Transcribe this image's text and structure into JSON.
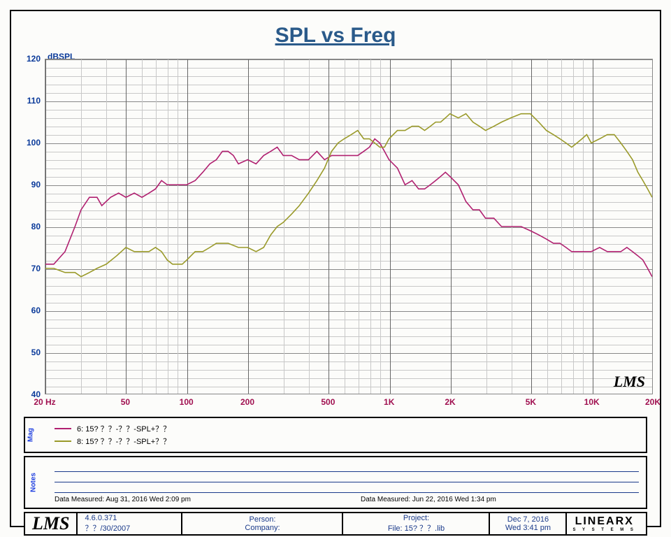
{
  "chart": {
    "type": "line",
    "title": "SPL vs Freq",
    "title_color": "#2a5a8a",
    "title_fontsize": 30,
    "ylabel": "dBSPL",
    "ylabel_color": "#0a3a9a",
    "background_color": "#fcfcfa",
    "grid_color_minor": "#c8c8c8",
    "grid_color_major": "#888888",
    "xtick_color": "#a01050",
    "ytick_color": "#0a3a9a",
    "line_width": 1.6,
    "xscale": "log",
    "xlim": [
      20,
      20000
    ],
    "ylim": [
      40,
      120
    ],
    "ytick_step_major": 10,
    "ytick_step_minor": 2,
    "xticks_labeled": [
      {
        "v": 20,
        "label": "20 Hz"
      },
      {
        "v": 50,
        "label": "50"
      },
      {
        "v": 100,
        "label": "100"
      },
      {
        "v": 200,
        "label": "200"
      },
      {
        "v": 500,
        "label": "500"
      },
      {
        "v": 1000,
        "label": "1K"
      },
      {
        "v": 2000,
        "label": "2K"
      },
      {
        "v": 5000,
        "label": "5K"
      },
      {
        "v": 10000,
        "label": "10K"
      },
      {
        "v": 20000,
        "label": "20K"
      }
    ],
    "xgrid_log_lines": [
      20,
      30,
      40,
      50,
      60,
      70,
      80,
      90,
      100,
      200,
      300,
      400,
      500,
      600,
      700,
      800,
      900,
      1000,
      2000,
      3000,
      4000,
      5000,
      6000,
      7000,
      8000,
      9000,
      10000,
      20000
    ],
    "watermark": "LMS",
    "series": [
      {
        "name": "6: 15? ？？-？？-SPL+？？",
        "color": "#b02070",
        "points": [
          [
            20,
            71
          ],
          [
            22,
            71
          ],
          [
            25,
            74
          ],
          [
            28,
            80
          ],
          [
            30,
            84
          ],
          [
            33,
            87
          ],
          [
            36,
            87
          ],
          [
            38,
            85
          ],
          [
            42,
            87
          ],
          [
            46,
            88
          ],
          [
            50,
            87
          ],
          [
            55,
            88
          ],
          [
            60,
            87
          ],
          [
            65,
            88
          ],
          [
            70,
            89
          ],
          [
            75,
            91
          ],
          [
            80,
            90
          ],
          [
            90,
            90
          ],
          [
            100,
            90
          ],
          [
            110,
            91
          ],
          [
            120,
            93
          ],
          [
            130,
            95
          ],
          [
            140,
            96
          ],
          [
            150,
            98
          ],
          [
            160,
            98
          ],
          [
            170,
            97
          ],
          [
            180,
            95
          ],
          [
            200,
            96
          ],
          [
            220,
            95
          ],
          [
            240,
            97
          ],
          [
            260,
            98
          ],
          [
            280,
            99
          ],
          [
            300,
            97
          ],
          [
            330,
            97
          ],
          [
            360,
            96
          ],
          [
            400,
            96
          ],
          [
            440,
            98
          ],
          [
            480,
            96
          ],
          [
            520,
            97
          ],
          [
            560,
            97
          ],
          [
            600,
            97
          ],
          [
            650,
            97
          ],
          [
            700,
            97
          ],
          [
            750,
            98
          ],
          [
            800,
            99
          ],
          [
            850,
            101
          ],
          [
            900,
            100
          ],
          [
            950,
            98
          ],
          [
            1000,
            96
          ],
          [
            1100,
            94
          ],
          [
            1200,
            90
          ],
          [
            1300,
            91
          ],
          [
            1400,
            89
          ],
          [
            1500,
            89
          ],
          [
            1600,
            90
          ],
          [
            1700,
            91
          ],
          [
            1800,
            92
          ],
          [
            1900,
            93
          ],
          [
            2000,
            92
          ],
          [
            2200,
            90
          ],
          [
            2400,
            86
          ],
          [
            2600,
            84
          ],
          [
            2800,
            84
          ],
          [
            3000,
            82
          ],
          [
            3300,
            82
          ],
          [
            3600,
            80
          ],
          [
            4000,
            80
          ],
          [
            4500,
            80
          ],
          [
            5000,
            79
          ],
          [
            5500,
            78
          ],
          [
            6000,
            77
          ],
          [
            6500,
            76
          ],
          [
            7000,
            76
          ],
          [
            7500,
            75
          ],
          [
            8000,
            74
          ],
          [
            9000,
            74
          ],
          [
            10000,
            74
          ],
          [
            11000,
            75
          ],
          [
            12000,
            74
          ],
          [
            13000,
            74
          ],
          [
            14000,
            74
          ],
          [
            15000,
            75
          ],
          [
            16000,
            74
          ],
          [
            17000,
            73
          ],
          [
            18000,
            72
          ],
          [
            19000,
            70
          ],
          [
            20000,
            68
          ]
        ]
      },
      {
        "name": "8: 15? ？？-？？-SPL+？？",
        "color": "#9a9a2a",
        "points": [
          [
            20,
            70
          ],
          [
            22,
            70
          ],
          [
            25,
            69
          ],
          [
            28,
            69
          ],
          [
            30,
            68
          ],
          [
            33,
            69
          ],
          [
            36,
            70
          ],
          [
            40,
            71
          ],
          [
            45,
            73
          ],
          [
            50,
            75
          ],
          [
            55,
            74
          ],
          [
            60,
            74
          ],
          [
            65,
            74
          ],
          [
            70,
            75
          ],
          [
            75,
            74
          ],
          [
            80,
            72
          ],
          [
            85,
            71
          ],
          [
            90,
            71
          ],
          [
            95,
            71
          ],
          [
            100,
            72
          ],
          [
            110,
            74
          ],
          [
            120,
            74
          ],
          [
            130,
            75
          ],
          [
            140,
            76
          ],
          [
            150,
            76
          ],
          [
            160,
            76
          ],
          [
            180,
            75
          ],
          [
            200,
            75
          ],
          [
            220,
            74
          ],
          [
            240,
            75
          ],
          [
            260,
            78
          ],
          [
            280,
            80
          ],
          [
            300,
            81
          ],
          [
            330,
            83
          ],
          [
            360,
            85
          ],
          [
            400,
            88
          ],
          [
            440,
            91
          ],
          [
            480,
            94
          ],
          [
            520,
            98
          ],
          [
            560,
            100
          ],
          [
            600,
            101
          ],
          [
            650,
            102
          ],
          [
            700,
            103
          ],
          [
            750,
            101
          ],
          [
            800,
            101
          ],
          [
            850,
            100
          ],
          [
            900,
            99
          ],
          [
            950,
            99
          ],
          [
            1000,
            101
          ],
          [
            1100,
            103
          ],
          [
            1200,
            103
          ],
          [
            1300,
            104
          ],
          [
            1400,
            104
          ],
          [
            1500,
            103
          ],
          [
            1600,
            104
          ],
          [
            1700,
            105
          ],
          [
            1800,
            105
          ],
          [
            1900,
            106
          ],
          [
            2000,
            107
          ],
          [
            2200,
            106
          ],
          [
            2400,
            107
          ],
          [
            2600,
            105
          ],
          [
            2800,
            104
          ],
          [
            3000,
            103
          ],
          [
            3300,
            104
          ],
          [
            3600,
            105
          ],
          [
            4000,
            106
          ],
          [
            4500,
            107
          ],
          [
            5000,
            107
          ],
          [
            5500,
            105
          ],
          [
            6000,
            103
          ],
          [
            6500,
            102
          ],
          [
            7000,
            101
          ],
          [
            7500,
            100
          ],
          [
            8000,
            99
          ],
          [
            8500,
            100
          ],
          [
            9000,
            101
          ],
          [
            9500,
            102
          ],
          [
            10000,
            100
          ],
          [
            11000,
            101
          ],
          [
            12000,
            102
          ],
          [
            13000,
            102
          ],
          [
            14000,
            100
          ],
          [
            15000,
            98
          ],
          [
            16000,
            96
          ],
          [
            17000,
            93
          ],
          [
            18000,
            91
          ],
          [
            19000,
            89
          ],
          [
            20000,
            87
          ]
        ]
      }
    ]
  },
  "legend": {
    "tab": "Mag",
    "items": [
      {
        "color": "#b02070",
        "label": "6: 15? ？？-？？-SPL+？？"
      },
      {
        "color": "#9a9a2a",
        "label": "8: 15? ？？-？？-SPL+？？"
      }
    ]
  },
  "notes": {
    "tab": "Notes",
    "measured_left": "Data Measured:  Aug 31, 2016   Wed  2:09 pm",
    "measured_right": "Data Measured:  Jun 22, 2016   Wed  1:34 pm"
  },
  "footer": {
    "logo": "LMS",
    "version": "4.6.0.371",
    "date2": "？？/30/2007",
    "person_label": "Person:",
    "company_label": "Company:",
    "project_label": "Project:",
    "file_label": "File: 15? ？？.lib",
    "date": "Dec 7, 2016",
    "time": "Wed  3:41 pm",
    "brand": "LINEARX",
    "brand_sub": "S  Y  S  T  E  M  S"
  }
}
